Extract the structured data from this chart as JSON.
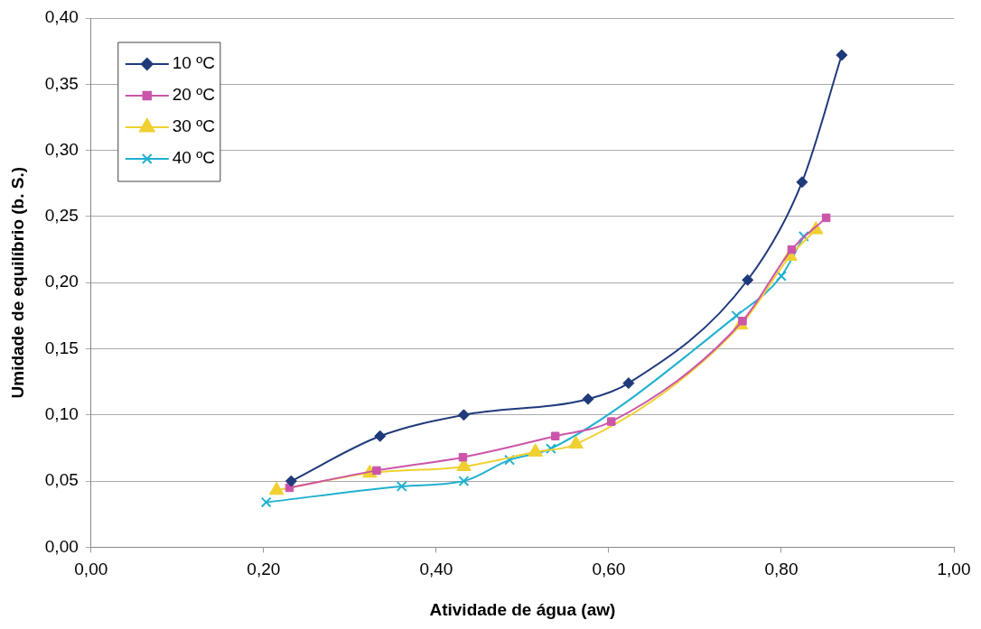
{
  "chart_data": {
    "type": "line",
    "xlabel": "Atividade de água (aw)",
    "ylabel": "Umidade de equilíbrio (b. S.)",
    "xlim": [
      0,
      1
    ],
    "xticks": [
      {
        "value": 0,
        "label": "0,00"
      },
      {
        "value": 0.2,
        "label": "0,20"
      },
      {
        "value": 0.4,
        "label": "0,40"
      },
      {
        "value": 0.6,
        "label": "0,60"
      },
      {
        "value": 0.8,
        "label": "0,80"
      },
      {
        "value": 1,
        "label": "1,00"
      }
    ],
    "ylim": [
      0,
      0.4
    ],
    "yticks": [
      {
        "value": 0,
        "label": "0,00"
      },
      {
        "value": 0.05,
        "label": "0,05"
      },
      {
        "value": 0.1,
        "label": "0,10"
      },
      {
        "value": 0.15,
        "label": "0,15"
      },
      {
        "value": 0.2,
        "label": "0,20"
      },
      {
        "value": 0.25,
        "label": "0,25"
      },
      {
        "value": 0.3,
        "label": "0,30"
      },
      {
        "value": 0.35,
        "label": "0,35"
      },
      {
        "value": 0.4,
        "label": "0,40"
      }
    ],
    "grid": "y",
    "legend": "top left",
    "line_style": "solid",
    "series": [
      {
        "name": "10 ºC",
        "color": "#1f3a7a",
        "marker": "diamond",
        "x": [
          0.232,
          0.335,
          0.432,
          0.576,
          0.623,
          0.761,
          0.824,
          0.87
        ],
        "values": [
          0.05,
          0.084,
          0.1,
          0.112,
          0.124,
          0.202,
          0.276,
          0.372
        ]
      },
      {
        "name": "20 ºC",
        "color": "#cc55aa",
        "marker": "square",
        "x": [
          0.23,
          0.331,
          0.431,
          0.538,
          0.603,
          0.755,
          0.812,
          0.852
        ],
        "values": [
          0.045,
          0.058,
          0.068,
          0.084,
          0.095,
          0.171,
          0.225,
          0.249
        ]
      },
      {
        "name": "30 ºC",
        "color": "#f0d030",
        "marker": "triangle",
        "x": [
          0.215,
          0.323,
          0.432,
          0.515,
          0.562,
          0.753,
          0.81,
          0.84
        ],
        "values": [
          0.043,
          0.056,
          0.061,
          0.072,
          0.078,
          0.168,
          0.22,
          0.24
        ]
      },
      {
        "name": "40 ºC",
        "color": "#20b0d0",
        "marker": "cross",
        "x": [
          0.203,
          0.36,
          0.432,
          0.485,
          0.533,
          0.748,
          0.8,
          0.826
        ],
        "values": [
          0.034,
          0.046,
          0.05,
          0.066,
          0.0745,
          0.175,
          0.205,
          0.235
        ]
      }
    ]
  }
}
